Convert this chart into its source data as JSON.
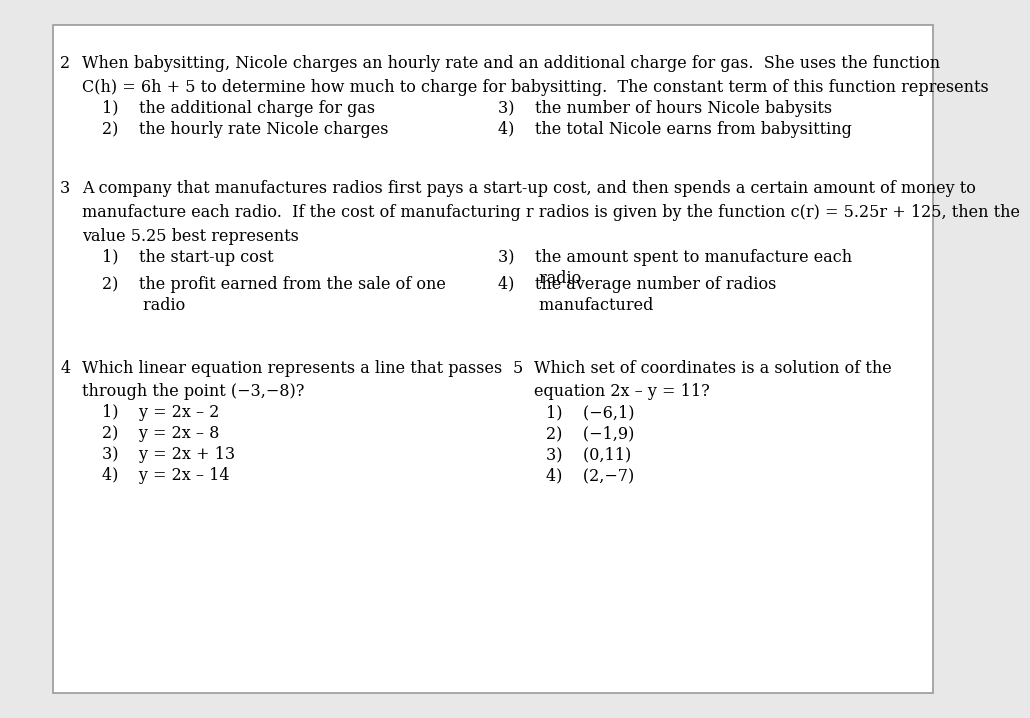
{
  "background_color": "#e8e8e8",
  "page_background": "#ffffff",
  "border_color": "#999999",
  "fs": 11.5,
  "q2": {
    "num": "2",
    "line1": "When babysitting, Nicole charges an hourly rate and an additional charge for gas.  She uses the function",
    "line2_a": "C(",
    "line2_b": "h",
    "line2_c": ") = 6",
    "line2_d": "h",
    "line2_e": " + 5 to determine how much to charge for babysitting.  The constant term of this function represents",
    "c1l": "1)    the additional charge for gas",
    "c1r": "3)    the number of hours Nicole babysits",
    "c2l": "2)    the hourly rate Nicole charges",
    "c2r": "4)    the total Nicole earns from babysitting"
  },
  "q3": {
    "num": "3",
    "line1": "A company that manufactures radios first pays a start-up cost, and then spends a certain amount of money to",
    "line2_a": "manufacture each radio.  If the cost of manufacturing ",
    "line2_b": "r",
    "line2_c": " radios is given by the function ",
    "line2_d": "c(",
    "line2_e": "r",
    "line2_f": ") = 5.25",
    "line2_g": "r",
    "line2_h": " + 125, then the",
    "line3": "value 5.25 best represents",
    "c1l": "1)    the start-up cost",
    "c1r_1": "3)    the amount spent to manufacture each",
    "c1r_2": "        radio",
    "c2l_1": "2)    the profit earned from the sale of one",
    "c2l_2": "        radio",
    "c2r_1": "4)    the average number of radios",
    "c2r_2": "        manufactured"
  },
  "q4": {
    "num": "4",
    "line1": "Which linear equation represents a line that passes",
    "line2": "through the point (−3,−8)?",
    "c1": "1)    y = 2x – 2",
    "c2": "2)    y = 2x – 8",
    "c3": "3)    y = 2x + 13",
    "c4": "4)    y = 2x – 14"
  },
  "q5": {
    "num": "5",
    "line1": "Which set of coordinates is a solution of the",
    "line2": "equation 2x – y = 11?",
    "c1": "1)    (−6,1)",
    "c2": "2)    (−1,9)",
    "c3": "3)    (0,11)",
    "c4": "4)    (2,−7)"
  }
}
